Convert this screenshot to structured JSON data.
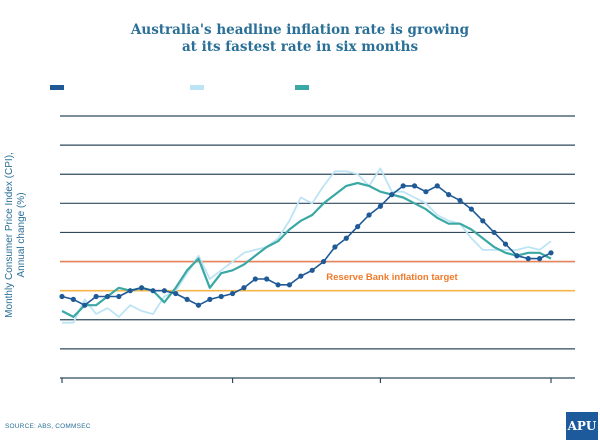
{
  "title_line1": "Australia's headline inflation rate is growing",
  "title_line2": "at its fastest rate in six months",
  "source": "SOURCE: ABS, COMMSEC",
  "logo_text": "APU",
  "ylabel_line1": "Monthly Consumer Price Index (CPI),",
  "ylabel_line2": "Annual change (%)",
  "colors": {
    "series1": "#1f5a96",
    "series2": "#bde4f4",
    "series3": "#3aa8a4",
    "rba_upper": "#e8845c",
    "rba_lower": "#f5b547",
    "annotation": "#f07a2a",
    "grid": "#2f4a5e",
    "title": "#2a6f97"
  },
  "chart_data": {
    "type": "line",
    "grid": true,
    "legend_position": "top",
    "ylim": [
      -1,
      8
    ],
    "n_points": 44,
    "annotations": [
      {
        "text": "Reserve Bank inflation target",
        "band": [
          2,
          3
        ]
      }
    ],
    "series": [
      {
        "style": "line-markers",
        "values": [
          1.8,
          1.7,
          1.5,
          1.8,
          1.8,
          1.8,
          2.0,
          2.1,
          2.0,
          2.0,
          1.9,
          1.7,
          1.5,
          1.7,
          1.8,
          1.9,
          2.1,
          2.4,
          2.4,
          2.2,
          2.2,
          2.5,
          2.7,
          3.0,
          3.5,
          3.8,
          4.2,
          4.6,
          4.9,
          5.3,
          5.6,
          5.6,
          5.4,
          5.6,
          5.3,
          5.1,
          4.8,
          4.4,
          4.0,
          3.6,
          3.2,
          3.1,
          3.1,
          3.3
        ]
      },
      {
        "style": "line",
        "values": [
          0.9,
          0.9,
          1.7,
          1.2,
          1.4,
          1.1,
          1.5,
          1.3,
          1.2,
          1.8,
          2.0,
          2.6,
          3.2,
          2.4,
          2.7,
          3.0,
          3.3,
          3.4,
          3.5,
          3.8,
          4.4,
          5.2,
          5.0,
          5.6,
          6.1,
          6.1,
          6.0,
          5.6,
          6.2,
          5.4,
          5.4,
          5.2,
          5.0,
          4.6,
          4.4,
          4.3,
          3.8,
          3.4,
          3.4,
          3.4,
          3.4,
          3.5,
          3.4,
          3.7
        ]
      },
      {
        "style": "line",
        "values": [
          1.3,
          1.1,
          1.5,
          1.5,
          1.8,
          2.1,
          2.0,
          2.1,
          2.0,
          1.6,
          2.1,
          2.7,
          3.1,
          2.1,
          2.6,
          2.7,
          2.9,
          3.2,
          3.5,
          3.7,
          4.1,
          4.4,
          4.6,
          5.0,
          5.3,
          5.6,
          5.7,
          5.6,
          5.4,
          5.3,
          5.2,
          5.0,
          4.8,
          4.5,
          4.3,
          4.3,
          4.1,
          3.8,
          3.5,
          3.3,
          3.2,
          3.3,
          3.3,
          3.1
        ]
      }
    ]
  }
}
